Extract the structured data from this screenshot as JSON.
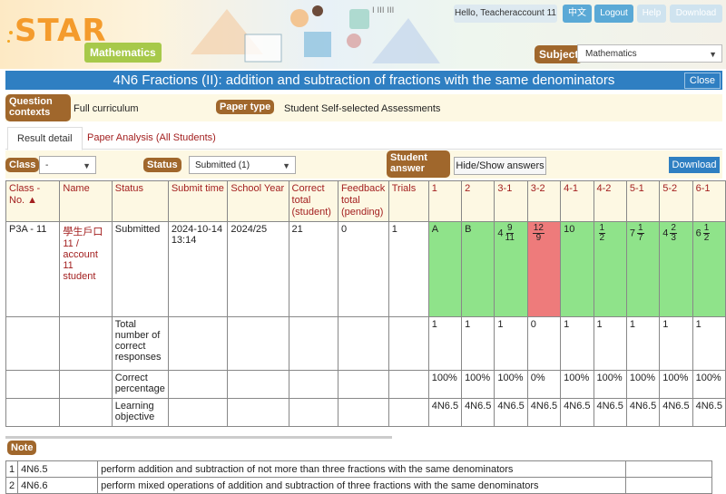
{
  "header": {
    "logo": "STAR",
    "logo_sub": "Mathematics",
    "greeting": "Hello, Teacheraccount 11",
    "lang_btn": "中文",
    "logout_btn": "Logout",
    "help_btn": "Help",
    "download_btn": "Download",
    "subject_label": "Subject",
    "subject_value": "Mathematics"
  },
  "title": "4N6 Fractions (II): addition and subtraction of fractions with the same denominators",
  "close_btn": "Close",
  "info": {
    "context_label": "Question contexts",
    "context_value": "Full curriculum",
    "paper_type_label": "Paper type",
    "paper_type_value": "Student Self-selected Assessments"
  },
  "tabs": [
    "Result detail",
    "Paper Analysis (All Students)"
  ],
  "filters": {
    "class_label": "Class",
    "class_value": "-",
    "status_label": "Status",
    "status_value": "Submitted (1)",
    "student_answer_label": "Student answer",
    "show_answers_btn": "Hide/Show answers",
    "download_btn": "Download"
  },
  "table": {
    "headers": [
      "Class - No. ▲",
      "Name",
      "Status",
      "Submit time",
      "School Year",
      "Correct total (student)",
      "Feedback total (pending)",
      "Trials",
      "1",
      "2",
      "3-1",
      "3-2",
      "4-1",
      "4-2",
      "5-1",
      "5-2",
      "6-1"
    ],
    "student": {
      "class_no": "P3A - 11",
      "name": "學生戶口 11 / account 11 student",
      "status": "Submitted",
      "submit_time": "2024-10-14 13:14",
      "school_year": "2024/25",
      "correct_total": "21",
      "feedback_total": "0",
      "trials": "1",
      "answers": [
        {
          "whole": "A",
          "num": "",
          "den": "",
          "correct": true
        },
        {
          "whole": "B",
          "num": "",
          "den": "",
          "correct": true
        },
        {
          "whole": "4",
          "num": "9",
          "den": "11",
          "correct": true
        },
        {
          "whole": "",
          "num": "12",
          "den": "9",
          "correct": false
        },
        {
          "whole": "10",
          "num": "",
          "den": "",
          "correct": true
        },
        {
          "whole": "",
          "num": "1",
          "den": "2",
          "correct": true
        },
        {
          "whole": "7",
          "num": "1",
          "den": "7",
          "correct": true
        },
        {
          "whole": "4",
          "num": "2",
          "den": "3",
          "correct": true
        },
        {
          "whole": "6",
          "num": "1",
          "den": "2",
          "correct": true
        }
      ]
    },
    "summary": [
      {
        "label": "Total number of correct responses",
        "values": [
          "1",
          "1",
          "1",
          "0",
          "1",
          "1",
          "1",
          "1",
          "1"
        ]
      },
      {
        "label": "Correct percentage",
        "values": [
          "100%",
          "100%",
          "100%",
          "0%",
          "100%",
          "100%",
          "100%",
          "100%",
          "100%"
        ]
      },
      {
        "label": "Learning objective",
        "values": [
          "4N6.5",
          "4N6.5",
          "4N6.5",
          "4N6.5",
          "4N6.5",
          "4N6.5",
          "4N6.5",
          "4N6.5",
          "4N6.5"
        ]
      }
    ]
  },
  "notes": {
    "label": "Note",
    "rows": [
      {
        "no": "1",
        "code": "4N6.5",
        "desc": "perform addition and subtraction of not more than three fractions with the same denominators"
      },
      {
        "no": "2",
        "code": "4N6.6",
        "desc": "perform mixed operations of addition and subtraction of three fractions with the same denominators"
      }
    ]
  },
  "colors": {
    "correct": "#8fe38a",
    "incorrect": "#ee7b7b",
    "accent": "#2f7fc2",
    "pill": "#a0672c"
  }
}
